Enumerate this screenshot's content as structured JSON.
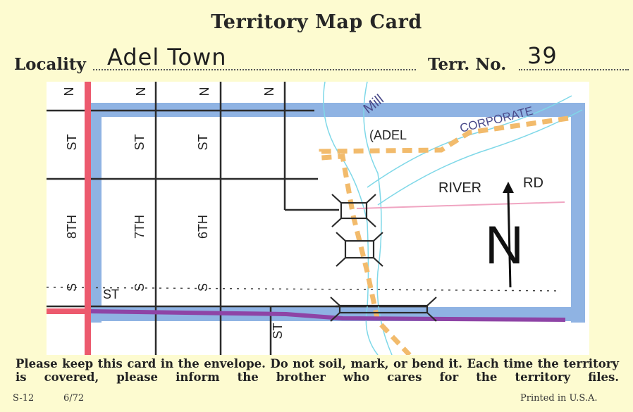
{
  "card": {
    "title": "Territory Map Card",
    "locality_label": "Locality",
    "locality_value": "Adel Town",
    "terr_label": "Terr. No.",
    "terr_value": "39"
  },
  "map": {
    "streets": {
      "n1": "N",
      "n2": "N",
      "n3": "N",
      "n4": "N",
      "st1": "ST",
      "st2": "ST",
      "st3": "ST",
      "eighth": "8TH",
      "seventh": "7TH",
      "sixth": "6TH",
      "s1": "S",
      "s2": "S",
      "s3": "S",
      "s_st": "ST",
      "bottom_st": "ST"
    },
    "labels": {
      "mill": "Mill",
      "adel": "(ADEL",
      "corporate": "CORPORATE",
      "river": "RIVER",
      "rd": "RD",
      "north": "N"
    },
    "colors": {
      "boundary_blue": "#8fb3e3",
      "purple_road": "#8e44a6",
      "red_road": "#ec5a6e",
      "corporate_line": "#f2bb6c",
      "river": "#7fd8e8"
    }
  },
  "footer": {
    "notice": "Please keep this card in the envelope. Do not soil, mark, or bend it. Each time the territory is covered, please inform the brother who cares for the territory files.",
    "form_no": "S-12",
    "date": "6/72",
    "printed": "Printed in U.S.A."
  }
}
